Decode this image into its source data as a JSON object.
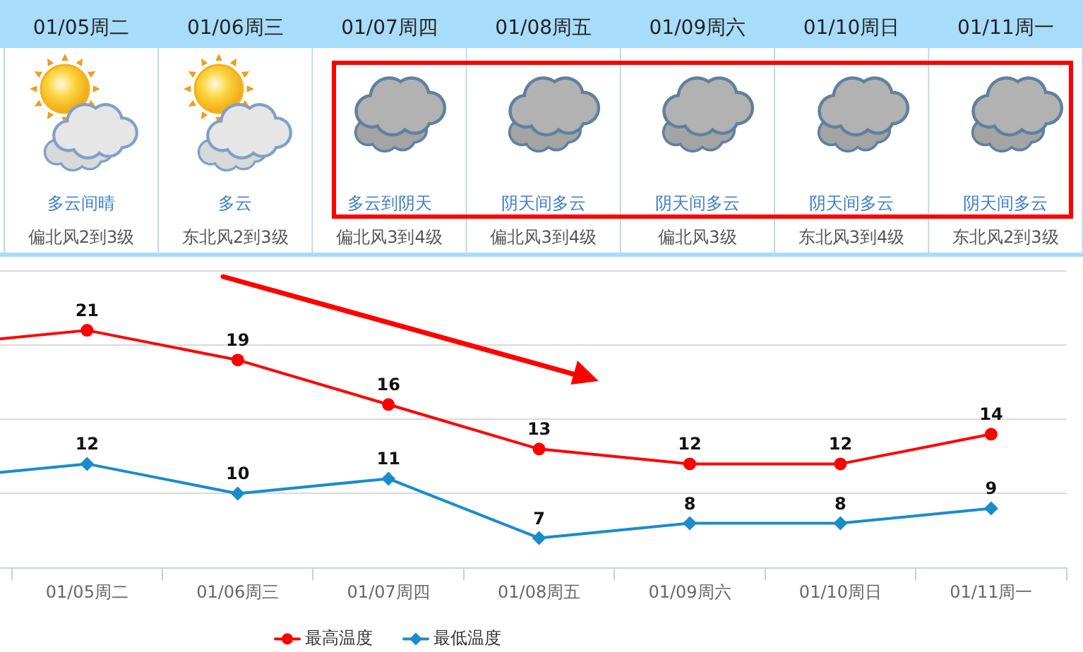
{
  "chart_data": [
    {
      "type": "other",
      "categories": [
        "01/05周二",
        "01/06周三",
        "01/07周四",
        "01/08周五",
        "01/09周六",
        "01/10周日",
        "01/11周一"
      ],
      "annotations": [
        "多云间晴",
        "多云",
        "多云到阴天",
        "阴天间多云",
        "阴天间多云",
        "阴天间多云",
        "阴天间多云",
        "偏北风2到3级",
        "东北风2到3级",
        "偏北风3到4级",
        "偏北风3到4级",
        "偏北风3级",
        "东北风3到4级",
        "东北风2到3级"
      ]
    },
    {
      "type": "line",
      "categories": [
        null,
        "01/05周二",
        "01/06周三",
        "01/07周四",
        "01/08周五",
        "01/09周六",
        "01/10周日",
        "01/11周一"
      ],
      "series": [
        {
          "name": "最高温度",
          "color": "#ff0000",
          "marker": "circle",
          "values": [
            20,
            21,
            19,
            16,
            13,
            12,
            12,
            14
          ],
          "value_labels": [
            null,
            "21",
            "19",
            "16",
            "13",
            "12",
            "12",
            "14"
          ]
        },
        {
          "name": "最低温度",
          "color": "#1a8ccb",
          "marker": "diamond",
          "values": [
            11,
            12,
            10,
            11,
            7,
            8,
            8,
            9
          ],
          "value_labels": [
            null,
            "12",
            "10",
            "11",
            "7",
            "8",
            "8",
            "9"
          ]
        }
      ],
      "ylim": [
        5,
        25
      ],
      "yticks": [
        {
          "value": 5,
          "label": null
        },
        {
          "value": 10,
          "label": null
        },
        {
          "value": 15,
          "label": null
        },
        {
          "value": 20,
          "label": null
        },
        {
          "value": 25,
          "label": null
        }
      ],
      "grid": "y",
      "legend": "bottom",
      "tick_labels": "x"
    }
  ]
}
